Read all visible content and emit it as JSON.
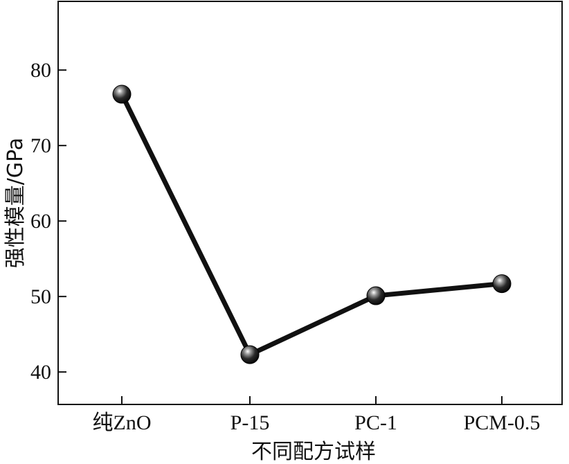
{
  "chart_data": {
    "type": "line",
    "categories": [
      "纯ZnO",
      "P-15",
      "PC-1",
      "PCM-0.5"
    ],
    "series": [
      {
        "values": [
          76.8,
          42.3,
          50.1,
          51.7
        ]
      }
    ],
    "xlabel": "不同配方试样",
    "ylabel": "强性模量/GPa",
    "ylim": [
      35.7,
      89.1
    ],
    "yticks": [
      40,
      50,
      60,
      70,
      80
    ],
    "grid": false,
    "legend": "none",
    "colors": {
      "line": "#111111",
      "marker": "#222222",
      "axis": "#111111"
    }
  }
}
